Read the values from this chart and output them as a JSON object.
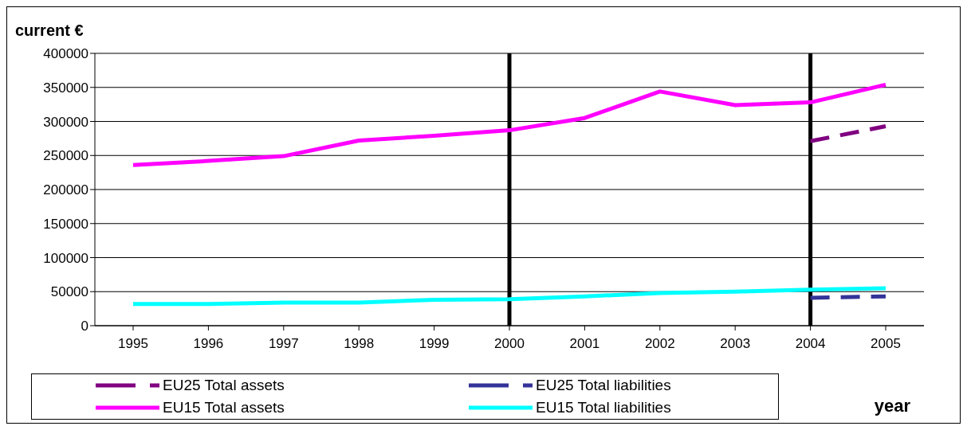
{
  "chart_data": {
    "type": "line",
    "ylabel": "current €",
    "xlabel": "year",
    "categories": [
      "1995",
      "1996",
      "1997",
      "1998",
      "1999",
      "2000",
      "2001",
      "2002",
      "2003",
      "2004",
      "2005"
    ],
    "series": [
      {
        "name": "EU25 Total assets",
        "color": "#800080",
        "line_style": "dashed",
        "values": [
          null,
          null,
          null,
          null,
          null,
          null,
          null,
          null,
          null,
          271000,
          293000
        ]
      },
      {
        "name": "EU25 Total liabilities",
        "color": "#333399",
        "line_style": "dashed",
        "values": [
          null,
          null,
          null,
          null,
          null,
          null,
          null,
          null,
          null,
          41000,
          43000
        ]
      },
      {
        "name": "EU15 Total assets",
        "color": "#ff00ff",
        "line_style": "solid",
        "values": [
          236000,
          242000,
          249000,
          272000,
          279000,
          287000,
          305000,
          344000,
          324000,
          328000,
          354000
        ]
      },
      {
        "name": "EU15 Total liabilities",
        "color": "#00ffff",
        "line_style": "solid",
        "values": [
          32000,
          32000,
          34000,
          34000,
          38000,
          39000,
          43000,
          48000,
          50000,
          53000,
          55000
        ]
      }
    ],
    "ylim": [
      0,
      400000
    ],
    "yticks": [
      0,
      50000,
      100000,
      150000,
      200000,
      250000,
      300000,
      350000,
      400000
    ],
    "grid": "y",
    "legend": "bottom",
    "marker": "none",
    "ref_lines": [
      {
        "axis": "x",
        "value": "2000",
        "color": "#000000"
      },
      {
        "axis": "x",
        "value": "2004",
        "color": "#000000"
      }
    ]
  }
}
